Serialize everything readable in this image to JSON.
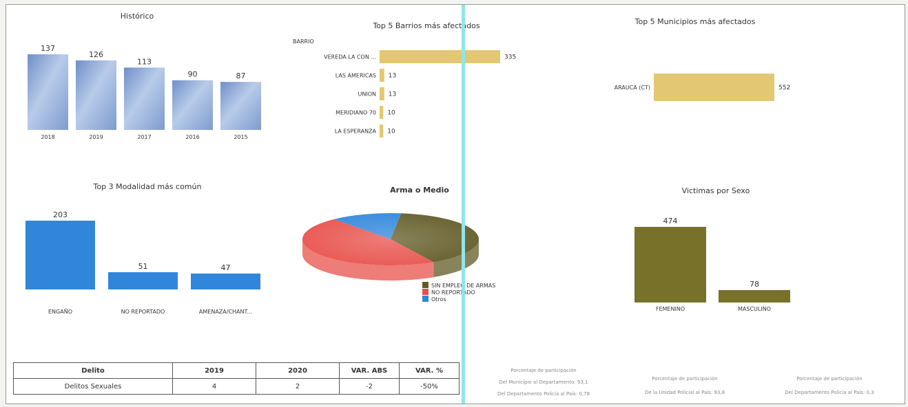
{
  "titles": {
    "historico": "Histórico",
    "barrios": "Top 5 Barrios más afectados",
    "municipios": "Top 5 Municipios más afectados",
    "modalidad": "Top 3 Modalidad más común",
    "arma": "Arma o Medio",
    "victimas": "Victimas por Sexo"
  },
  "colors": {
    "blue_gradient": "#8fa9d6",
    "blue_solid": "#2f86db",
    "gold": "#e3c772",
    "olive": "#77712a",
    "pie_red": "#e8504a",
    "pie_blue": "#2f86db",
    "pie_olive": "#615a26"
  },
  "chart_data": [
    {
      "id": "historico",
      "type": "bar",
      "categories": [
        "2018",
        "2019",
        "2017",
        "2016",
        "2015"
      ],
      "values": [
        137,
        126,
        113,
        90,
        87
      ],
      "ylim": [
        0,
        137
      ]
    },
    {
      "id": "barrios",
      "type": "bar",
      "orientation": "horizontal",
      "axis_label": "BARRIO",
      "categories": [
        "VEREDA LA CON ...",
        "LAS AMERICAS",
        "UNION",
        "MERIDIANO 70",
        "LA ESPERANZA"
      ],
      "values": [
        335,
        13,
        13,
        10,
        10
      ]
    },
    {
      "id": "municipios",
      "type": "bar",
      "orientation": "horizontal",
      "categories": [
        "ARAUCA (CT)"
      ],
      "values": [
        552
      ]
    },
    {
      "id": "modalidad",
      "type": "bar",
      "categories": [
        "ENGAÑO",
        "NO REPORTADO",
        "AMENAZA/CHANT..."
      ],
      "values": [
        203,
        51,
        47
      ]
    },
    {
      "id": "arma",
      "type": "pie",
      "labels": [
        "SIN EMPLEO DE ARMAS",
        "NO REPORTADO",
        "Otros"
      ],
      "values": [
        40,
        47,
        13
      ],
      "legend": "bottom-right"
    },
    {
      "id": "victimas",
      "type": "bar",
      "categories": [
        "FEMENINO",
        "MASCULINO"
      ],
      "values": [
        474,
        78
      ]
    }
  ],
  "table": {
    "headers": [
      "Delito",
      "2019",
      "2020",
      "VAR. ABS",
      "VAR. %"
    ],
    "rows": [
      [
        "Delitos Sexuales",
        "4",
        "2",
        "-2",
        "-50%"
      ]
    ]
  },
  "notes": {
    "n1_title": "Porcentaje de participación",
    "n1_line1": "Del Municipio al Departamento: 93,1",
    "n1_line2": "Del Departamento Policía al País: 0,78",
    "n2_title": "Porcentaje de participación",
    "n2_line1": "De la Unidad Policial al País: 93,8",
    "n3_title": "Porcentaje de participación",
    "n3_line1": "Del Departamento Policía al País: 0,3"
  }
}
